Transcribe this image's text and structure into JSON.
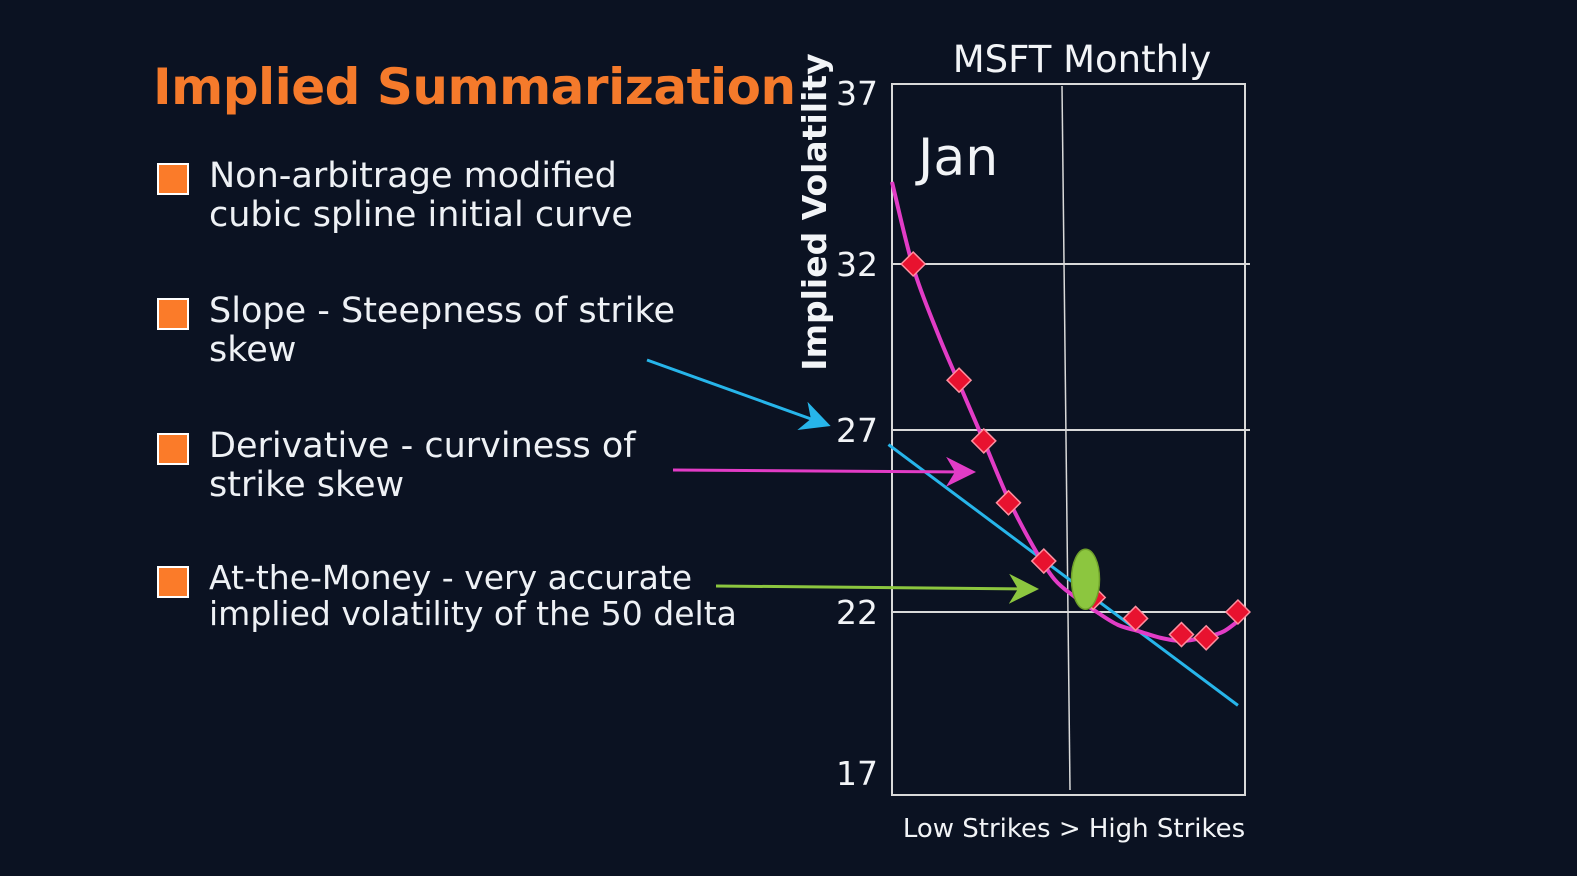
{
  "slide": {
    "title": "Implied Summarization",
    "bullets": [
      {
        "line1": "Non-arbitrage modified",
        "line2": "cubic spline initial curve"
      },
      {
        "line1": "Slope - Steepness of strike",
        "line2": "skew"
      },
      {
        "line1": "Derivative - curviness of",
        "line2": "strike skew"
      },
      {
        "line1": "At-the-Money - very accurate",
        "line2": "implied volatility of the 50 delta"
      }
    ]
  },
  "colors": {
    "background": "#0b1222",
    "title": "#f57a2b",
    "bullet_marker": "#fb7b29",
    "spline_curve": "#e23cc6",
    "slope_line": "#27b5ea",
    "data_points": "#e8122f",
    "atm_marker": "#8cc63f",
    "grid": "#d9d9d9"
  },
  "chart_data": {
    "type": "scatter",
    "title": "MSFT Monthly",
    "annotation": "Jan",
    "xlabel": "Low Strikes > High Strikes",
    "ylabel": "Implied Volatility",
    "y_ticks": [
      37,
      32,
      27,
      22,
      17
    ],
    "ylim": [
      17,
      37
    ],
    "xlim": [
      0,
      10
    ],
    "grid": true,
    "series": [
      {
        "type": "scatter",
        "marker": "diamond",
        "x": [
          0.6,
          1.9,
          2.6,
          3.3,
          4.3,
          5.7,
          6.9,
          8.2,
          8.9,
          9.8
        ],
        "y": [
          32.0,
          28.5,
          26.7,
          25.0,
          23.4,
          22.4,
          21.8,
          21.3,
          21.2,
          22.0
        ]
      },
      {
        "type": "line",
        "x": [
          0.0,
          0.6,
          1.3,
          1.9,
          2.6,
          3.3,
          4.0,
          4.6,
          5.2,
          5.8,
          6.4,
          7.0,
          7.6,
          8.2,
          8.8,
          9.4,
          10.0
        ],
        "y": [
          34.4,
          31.9,
          29.9,
          28.4,
          26.7,
          25.1,
          23.8,
          22.9,
          22.4,
          22.0,
          21.6,
          21.4,
          21.2,
          21.1,
          21.2,
          21.4,
          21.9
        ]
      },
      {
        "type": "line",
        "x": [
          -0.1,
          9.8
        ],
        "y": [
          26.6,
          19.1
        ]
      }
    ],
    "atm_point": {
      "x": 5.0,
      "y": 22.9
    }
  }
}
